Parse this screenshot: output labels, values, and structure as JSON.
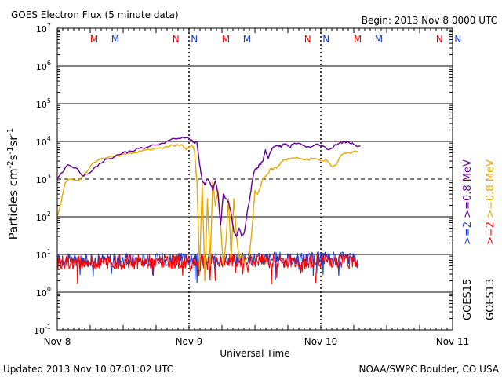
{
  "header": {
    "title": "GOES Electron Flux (5 minute data)",
    "begin": "Begin: 2013 Nov 8 0000 UTC"
  },
  "footer": {
    "updated": "Updated 2013 Nov 10 07:01:02 UTC",
    "credit": "NOAA/SWPC Boulder, CO USA"
  },
  "colors": {
    "purple": "#660099",
    "orange": "#e6a800",
    "blue": "#1a3fcc",
    "red": "#ff0000"
  },
  "chart_data": {
    "type": "line",
    "title": "GOES Electron Flux (5 minute data)",
    "xlabel": "Universal Time",
    "ylabel": "Particles cm-2s-1sr-1",
    "y_scale": "log",
    "ylim": [
      0.1,
      10000000
    ],
    "xlim": [
      "2013-11-08 00:00",
      "2013-11-11 00:00"
    ],
    "x_ticks": [
      "Nov 8",
      "Nov 9",
      "Nov 10",
      "Nov 11"
    ],
    "y_ticks": [
      {
        "base": "10",
        "exp": "7"
      },
      {
        "base": "10",
        "exp": "6"
      },
      {
        "base": "10",
        "exp": "5"
      },
      {
        "base": "10",
        "exp": "4"
      },
      {
        "base": "10",
        "exp": "3"
      },
      {
        "base": "10",
        "exp": "2"
      },
      {
        "base": "10",
        "exp": "1"
      },
      {
        "base": "10",
        "exp": "0"
      },
      {
        "base": "10",
        "exp": "-1"
      }
    ],
    "alert_threshold": 1000,
    "markers": [
      {
        "label": "M",
        "day": 0.28,
        "color": "#ff0000"
      },
      {
        "label": "M",
        "day": 0.44,
        "color": "#1a3fcc"
      },
      {
        "label": "N",
        "day": 0.9,
        "color": "#ff0000"
      },
      {
        "label": "N",
        "day": 1.04,
        "color": "#1a3fcc"
      },
      {
        "label": "M",
        "day": 1.28,
        "color": "#ff0000"
      },
      {
        "label": "M",
        "day": 1.44,
        "color": "#1a3fcc"
      },
      {
        "label": "N",
        "day": 1.9,
        "color": "#ff0000"
      },
      {
        "label": "N",
        "day": 2.04,
        "color": "#1a3fcc"
      },
      {
        "label": "M",
        "day": 2.28,
        "color": "#ff0000"
      },
      {
        "label": "M",
        "day": 2.44,
        "color": "#1a3fcc"
      },
      {
        "label": "N",
        "day": 2.9,
        "color": "#ff0000"
      },
      {
        "label": "N",
        "day": 3.04,
        "color": "#1a3fcc"
      }
    ],
    "legend": {
      "goes15": ">=2  >=0.8 MeV",
      "goes15_label": "GOES15",
      "goes13_label": "GOES13",
      "entries": [
        {
          "text": ">=2",
          "color": "#1a3fcc"
        },
        {
          "text": ">=0.8 MeV",
          "color": "#660099"
        },
        {
          "text": ">=2",
          "color": "#ff0000"
        },
        {
          "text": ">=0.8 MeV",
          "color": "#e6a800"
        }
      ]
    },
    "series": [
      {
        "name": "GOES15 >=0.8 MeV",
        "color": "#660099",
        "x_days": [
          0,
          0.04,
          0.08,
          0.14,
          0.2,
          0.26,
          0.32,
          0.38,
          0.44,
          0.5,
          0.56,
          0.62,
          0.68,
          0.74,
          0.8,
          0.86,
          0.92,
          0.98,
          1.02,
          1.04,
          1.06,
          1.08,
          1.1,
          1.12,
          1.14,
          1.16,
          1.18,
          1.2,
          1.22,
          1.24,
          1.26,
          1.28,
          1.3,
          1.32,
          1.34,
          1.36,
          1.38,
          1.4,
          1.42,
          1.44,
          1.46,
          1.48,
          1.5,
          1.52,
          1.54,
          1.56,
          1.58,
          1.6,
          1.62,
          1.64,
          1.66,
          1.68,
          1.7,
          1.72,
          1.74,
          1.76,
          1.8,
          1.86,
          1.92,
          1.98,
          2.02,
          2.06,
          2.1,
          2.14,
          2.18,
          2.22,
          2.26,
          2.3
        ],
        "values": [
          1000,
          1500,
          2400,
          2000,
          1200,
          1600,
          2600,
          3400,
          4000,
          5000,
          5500,
          6500,
          7000,
          8000,
          9000,
          11000,
          12000,
          12500,
          11000,
          9000,
          9500,
          2500,
          900,
          700,
          1000,
          800,
          500,
          900,
          400,
          60,
          400,
          300,
          250,
          120,
          40,
          30,
          50,
          30,
          40,
          120,
          300,
          900,
          1800,
          2000,
          2500,
          3000,
          6000,
          3500,
          5500,
          7000,
          7500,
          8000,
          7000,
          8500,
          8000,
          7000,
          9000,
          8000,
          7000,
          8500,
          7500,
          6000,
          7500,
          9000,
          10000,
          9000,
          8000,
          7500
        ]
      },
      {
        "name": "GOES13 >=0.8 MeV",
        "color": "#e6a800",
        "x_days": [
          0,
          0.03,
          0.06,
          0.1,
          0.16,
          0.22,
          0.28,
          0.34,
          0.4,
          0.46,
          0.52,
          0.58,
          0.64,
          0.7,
          0.76,
          0.82,
          0.88,
          0.94,
          0.98,
          1.02,
          1.04,
          1.06,
          1.08,
          1.1,
          1.12,
          1.14,
          1.16,
          1.18,
          1.2,
          1.22,
          1.24,
          1.26,
          1.28,
          1.3,
          1.32,
          1.34,
          1.36,
          1.38,
          1.4,
          1.42,
          1.44,
          1.46,
          1.48,
          1.5,
          1.52,
          1.54,
          1.56,
          1.58,
          1.6,
          1.62,
          1.64,
          1.66,
          1.68,
          1.7,
          1.72,
          1.76,
          1.82,
          1.88,
          1.94,
          2.0,
          2.04,
          2.08,
          2.12,
          2.16,
          2.2,
          2.24,
          2.28
        ],
        "values": [
          100,
          250,
          800,
          1000,
          900,
          1500,
          2800,
          3600,
          4000,
          4200,
          4600,
          5000,
          5500,
          6000,
          6500,
          7200,
          7800,
          8200,
          6000,
          8000,
          6000,
          900,
          4,
          800,
          2,
          300,
          5,
          900,
          200,
          500,
          60,
          5,
          20,
          300,
          8,
          300,
          30,
          8,
          10,
          6,
          8,
          10,
          60,
          500,
          400,
          600,
          1000,
          1200,
          1400,
          1900,
          1800,
          2000,
          2300,
          2800,
          3200,
          3400,
          3800,
          3200,
          3500,
          3000,
          3300,
          2200,
          2500,
          4500,
          5000,
          5200,
          5500
        ]
      },
      {
        "name": "GOES15 >=2 MeV",
        "color": "#1a3fcc",
        "x_days": [
          0,
          2.28
        ],
        "values": [
          7,
          8
        ]
      },
      {
        "name": "GOES13 >=2 MeV",
        "color": "#ff0000",
        "x_days": [
          0,
          2.28
        ],
        "values": [
          6,
          7
        ]
      }
    ]
  }
}
